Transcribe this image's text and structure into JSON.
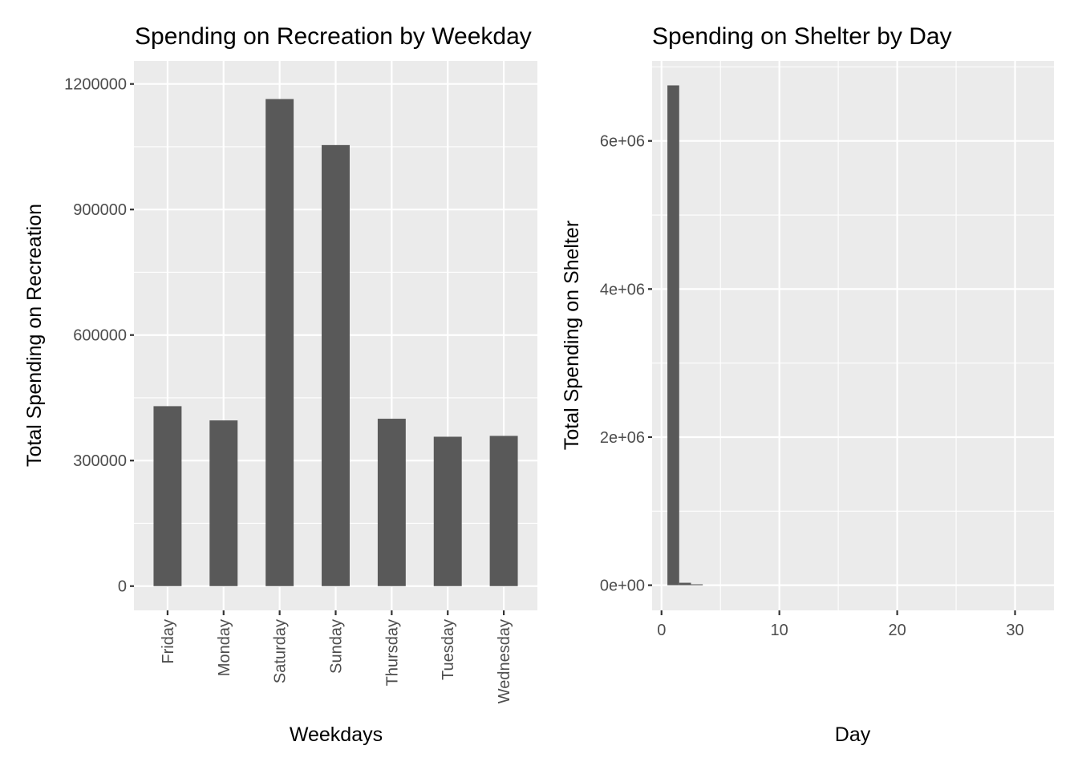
{
  "chart_data": [
    {
      "type": "bar",
      "title": "Spending on Recreation by Weekday",
      "xlabel": "Weekdays",
      "ylabel": "Total Spending on Recreation",
      "categories": [
        "Friday",
        "Monday",
        "Saturday",
        "Sunday",
        "Thursday",
        "Tuesday",
        "Wednesday"
      ],
      "values": [
        430000,
        396000,
        1164000,
        1054000,
        400000,
        357000,
        359000
      ],
      "ylim": [
        -58000,
        1255000
      ],
      "yticks": [
        0,
        300000,
        600000,
        900000,
        1200000
      ],
      "ytick_labels": [
        "0",
        "300000",
        "600000",
        "900000",
        "1200000"
      ],
      "grid": true,
      "x_tick_rotation": 90,
      "bar_color": "#595959",
      "panel_color": "#ebebeb"
    },
    {
      "type": "bar",
      "subtype": "histogram",
      "title": "Spending on Shelter by Day",
      "xlabel": "Day",
      "ylabel": "Total Spending on Shelter",
      "bins": [
        {
          "x": 1,
          "value": 6750000
        },
        {
          "x": 2,
          "value": 33000
        },
        {
          "x": 3,
          "value": 12000
        }
      ],
      "binwidth": 1,
      "xlim": [
        -0.8,
        33.3
      ],
      "ylim": [
        -340000,
        7080000
      ],
      "xticks": [
        0,
        10,
        20,
        30
      ],
      "xtick_labels": [
        "0",
        "10",
        "20",
        "30"
      ],
      "yticks": [
        0,
        2000000,
        4000000,
        6000000
      ],
      "ytick_labels": [
        "0e+00",
        "2e+06",
        "4e+06",
        "6e+06"
      ],
      "grid": true,
      "bar_color": "#595959",
      "panel_color": "#ebebeb"
    }
  ]
}
